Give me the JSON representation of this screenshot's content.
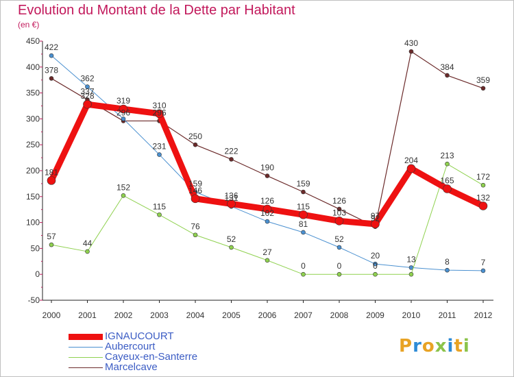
{
  "title": "Evolution du Montant de la Dette par Habitant",
  "subtitle": "(en €)",
  "logo": {
    "text": "Proxiti",
    "colors": [
      "#e8a325",
      "#2e8bd6",
      "#e8a325",
      "#8bc34a",
      "#2e8bd6",
      "#e8a325",
      "#8bc34a"
    ]
  },
  "chart_data": {
    "type": "line",
    "title": "Evolution du Montant de la Dette par Habitant",
    "ylabel": "(en €)",
    "x": [
      "2000",
      "2001",
      "2002",
      "2003",
      "2004",
      "2005",
      "2006",
      "2007",
      "2008",
      "2009",
      "2010",
      "2011",
      "2012"
    ],
    "ylim": [
      -50,
      450
    ],
    "yticks": [
      "-50",
      "0",
      "50",
      "100",
      "150",
      "200",
      "250",
      "300",
      "350",
      "400",
      "450"
    ],
    "grid": false,
    "legend_position": "bottom-left",
    "series": [
      {
        "name": "Marcelcave",
        "color": "#6b2a2a",
        "values": [
          378,
          337,
          296,
          296,
          250,
          222,
          190,
          159,
          126,
          92,
          430,
          384,
          359
        ],
        "labels": [
          "378",
          "337",
          "296",
          "296",
          "250",
          "222",
          "190",
          "159",
          "126",
          "92",
          "430",
          "384",
          "359"
        ]
      },
      {
        "name": "Aubercourt",
        "color": "#4a90d0",
        "values": [
          422,
          362,
          300,
          231,
          159,
          131,
          102,
          81,
          52,
          20,
          13,
          8,
          7
        ],
        "labels": [
          "422",
          "362",
          "",
          "231",
          "159",
          "131",
          "102",
          "81",
          "52",
          "20",
          "13",
          "8",
          "7"
        ]
      },
      {
        "name": "Cayeux-en-Santerre",
        "color": "#8fd14f",
        "values": [
          57,
          44,
          152,
          115,
          76,
          52,
          27,
          0,
          0,
          0,
          0,
          213,
          172
        ],
        "labels": [
          "57",
          "44",
          "152",
          "115",
          "76",
          "52",
          "27",
          "0",
          "0",
          "0",
          "",
          "213",
          "172"
        ]
      },
      {
        "name": "IGNAUCOURT",
        "color": "#ee1111",
        "values": [
          181,
          328,
          319,
          310,
          146,
          136,
          126,
          115,
          103,
          97,
          204,
          165,
          132
        ],
        "labels": [
          "181",
          "328",
          "319",
          "310",
          "146",
          "136",
          "126",
          "115",
          "103",
          "97",
          "204",
          "165",
          "132"
        ]
      }
    ],
    "legend_order": [
      "IGNAUCOURT",
      "Aubercourt",
      "Cayeux-en-Santerre",
      "Marcelcave"
    ]
  }
}
